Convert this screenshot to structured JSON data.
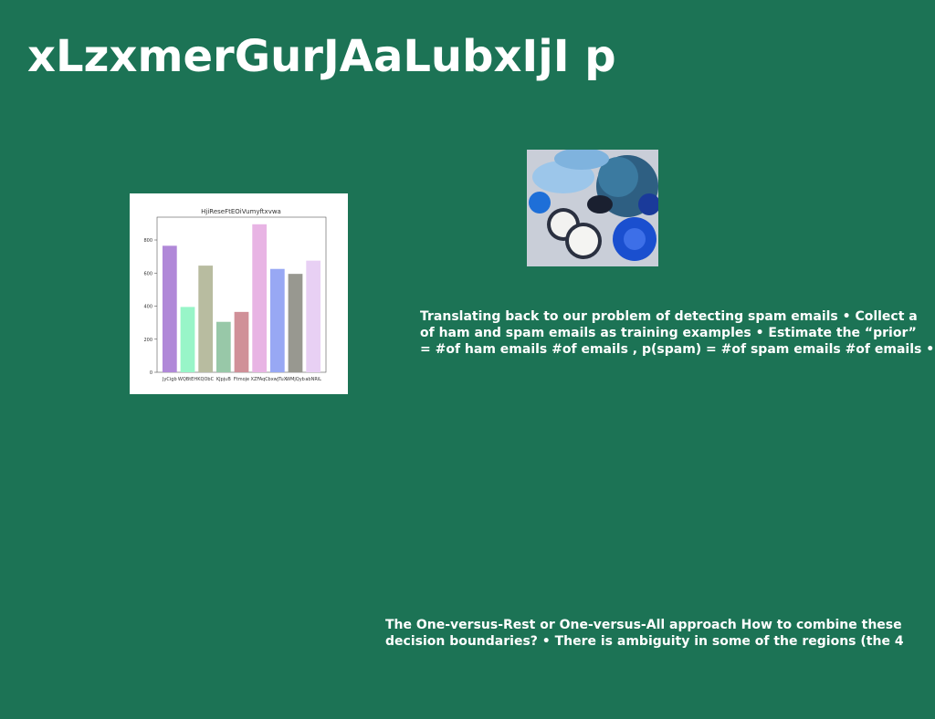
{
  "header": {
    "title": "xLzxmerGurJAaLubxIjI p"
  },
  "chart_data": {
    "type": "bar",
    "title": "HjiReseFtEOiVumyftxvwa",
    "categories": [
      "JyCigb",
      "WQBtEH",
      "KQObC",
      "KJpjuB",
      "Ftmoje",
      "XZFAqC",
      "bxwJTuX",
      "WMjQyb",
      "abNRiL"
    ],
    "values": [
      765,
      395,
      645,
      305,
      365,
      895,
      625,
      595,
      675
    ],
    "colors": [
      "#b088d8",
      "#98f5c8",
      "#b8bca0",
      "#98c8a8",
      "#d09098",
      "#e8b4e4",
      "#98a8f4",
      "#989890",
      "#e8d0f4"
    ],
    "ylim": [
      0,
      938
    ],
    "yticks": [
      0,
      200,
      400,
      600,
      800
    ]
  },
  "text_blocks": [
    {
      "lines": [
        "Translating back to our problem of detecting spam emails • Collect a",
        "of ham and spam emails as training examples • Estimate the “prior”",
        "= #of ham emails #of emails , p(spam) = #of spam emails #of emails •"
      ]
    },
    {
      "lines": [
        "The One-versus-Rest or One-versus-All approach How to combine these",
        "decision boundaries? • There is ambiguity in some of the regions (the 4"
      ]
    }
  ]
}
